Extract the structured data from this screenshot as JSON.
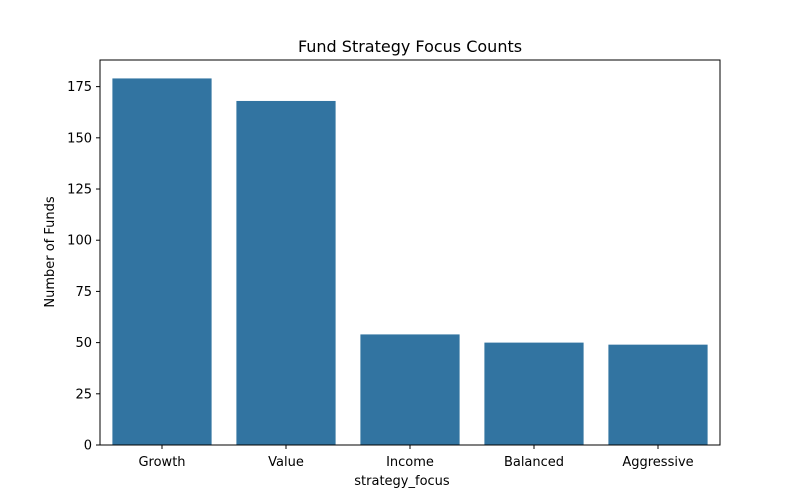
{
  "chart_data": {
    "type": "bar",
    "title": "Fund Strategy Focus Counts",
    "xlabel": "strategy_focus",
    "ylabel": "Number of Funds",
    "categories": [
      "Growth",
      "Value",
      "Income",
      "Balanced",
      "Aggressive"
    ],
    "values": [
      179,
      168,
      54,
      50,
      49
    ],
    "ylim": [
      0,
      188
    ],
    "yticks": [
      0,
      25,
      50,
      75,
      100,
      125,
      150,
      175
    ],
    "bar_color": "#3274a1",
    "grid": false,
    "legend": "none"
  }
}
